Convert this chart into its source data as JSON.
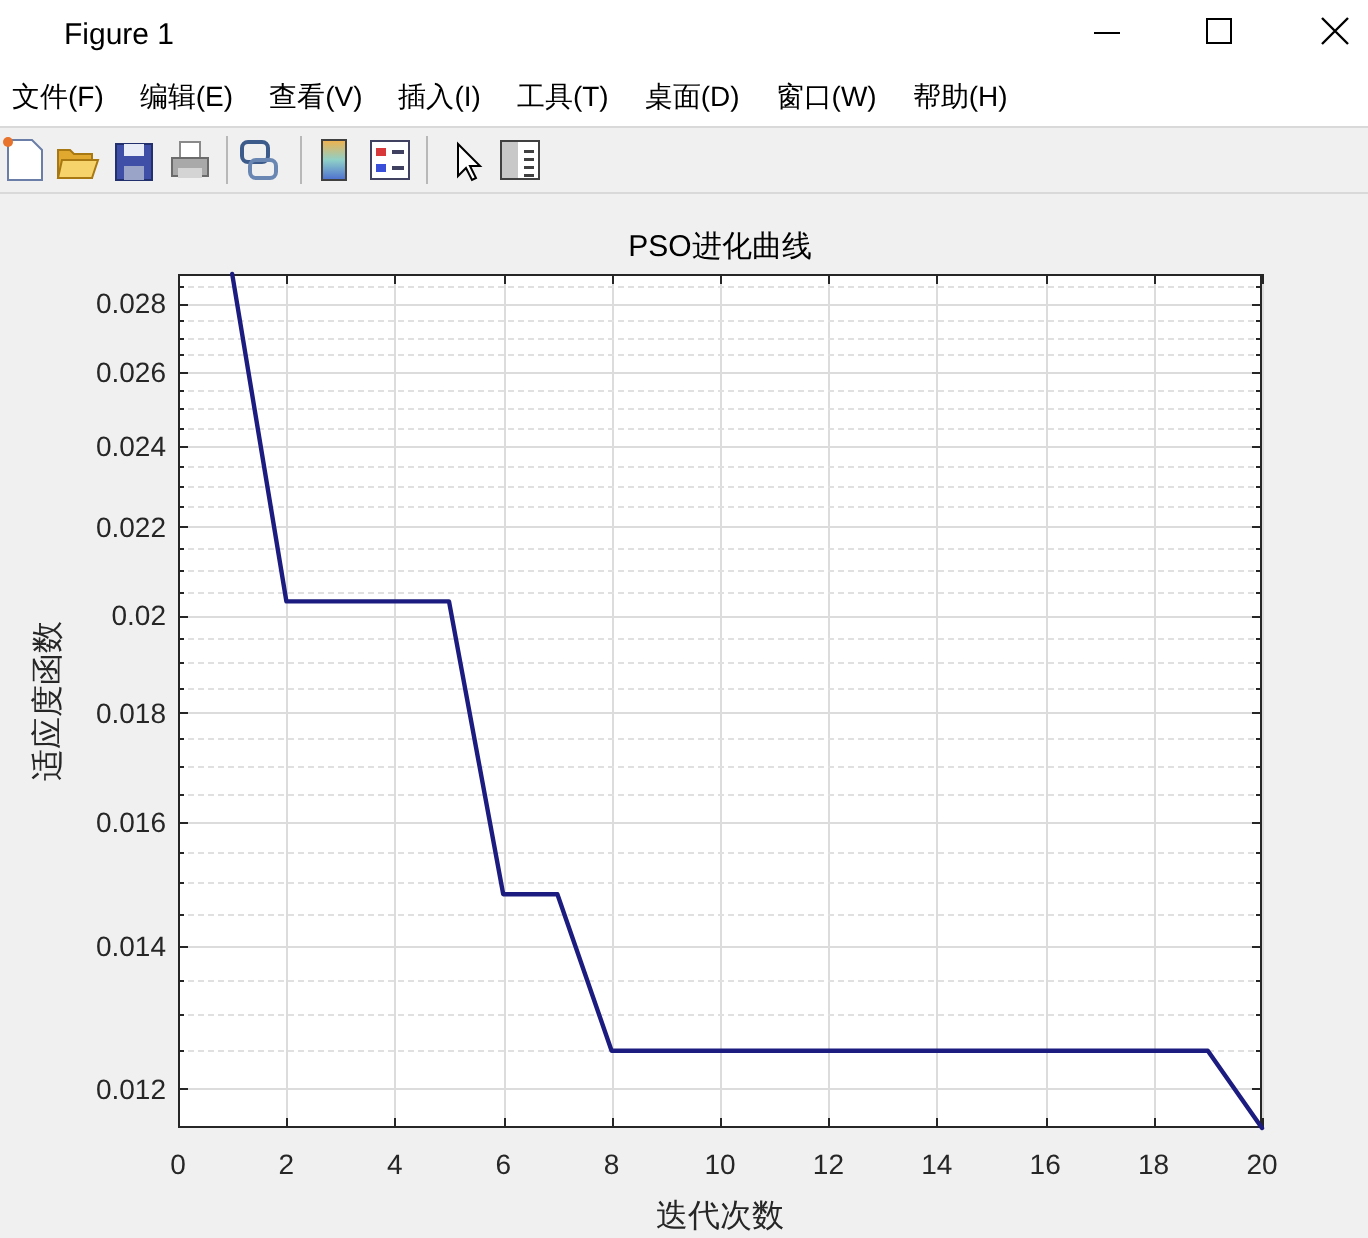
{
  "chart_data": {
    "type": "line",
    "title": "PSO进化曲线",
    "xlabel": "迭代次数",
    "ylabel": "适应度函数",
    "x": [
      1,
      2,
      3,
      4,
      5,
      6,
      7,
      8,
      9,
      10,
      11,
      12,
      13,
      14,
      15,
      16,
      17,
      18,
      19,
      20
    ],
    "series": [
      {
        "color": "#1c1c80",
        "values": [
          0.0289,
          0.0203,
          0.0203,
          0.0203,
          0.0203,
          0.0148,
          0.0148,
          0.0125,
          0.0125,
          0.0125,
          0.0125,
          0.0125,
          0.0125,
          0.0125,
          0.0125,
          0.0125,
          0.0125,
          0.0125,
          0.0125,
          0.0115
        ]
      }
    ],
    "xlim": [
      0,
      20
    ],
    "xticks": [
      0,
      2,
      4,
      6,
      8,
      10,
      12,
      14,
      16,
      18,
      20
    ],
    "ylim": [
      0.0115,
      0.0289
    ],
    "yticks": [
      0.012,
      {
        "value": 0.0125,
        "label": null
      },
      {
        "value": 0.013,
        "label": null
      },
      {
        "value": 0.0135,
        "label": null
      },
      0.014,
      {
        "value": 0.0145,
        "label": null
      },
      {
        "value": 0.015,
        "label": null
      },
      {
        "value": 0.0155,
        "label": null
      },
      0.016,
      {
        "value": 0.0165,
        "label": null
      },
      {
        "value": 0.017,
        "label": null
      },
      {
        "value": 0.0175,
        "label": null
      },
      0.018,
      {
        "value": 0.0185,
        "label": null
      },
      {
        "value": 0.019,
        "label": null
      },
      {
        "value": 0.0195,
        "label": null
      },
      0.02,
      {
        "value": 0.0205,
        "label": null
      },
      {
        "value": 0.021,
        "label": null
      },
      {
        "value": 0.0215,
        "label": null
      },
      0.022,
      {
        "value": 0.0225,
        "label": null
      },
      {
        "value": 0.023,
        "label": null
      },
      {
        "value": 0.0235,
        "label": null
      },
      0.024,
      {
        "value": 0.0245,
        "label": null
      },
      {
        "value": 0.025,
        "label": null
      },
      {
        "value": 0.0255,
        "label": null
      },
      0.026,
      {
        "value": 0.0265,
        "label": null
      },
      {
        "value": 0.027,
        "label": null
      },
      {
        "value": 0.0275,
        "label": null
      },
      0.028,
      {
        "value": 0.0285,
        "label": null
      }
    ],
    "log": "y",
    "grid": true,
    "line_style": "solid",
    "annotations": [
      "Figure 1",
      "文件(F)",
      "编辑(E)",
      "查看(V)",
      "插入(I)",
      "工具(T)",
      "桌面(D)",
      "窗口(W)",
      "帮助(H)"
    ]
  }
}
